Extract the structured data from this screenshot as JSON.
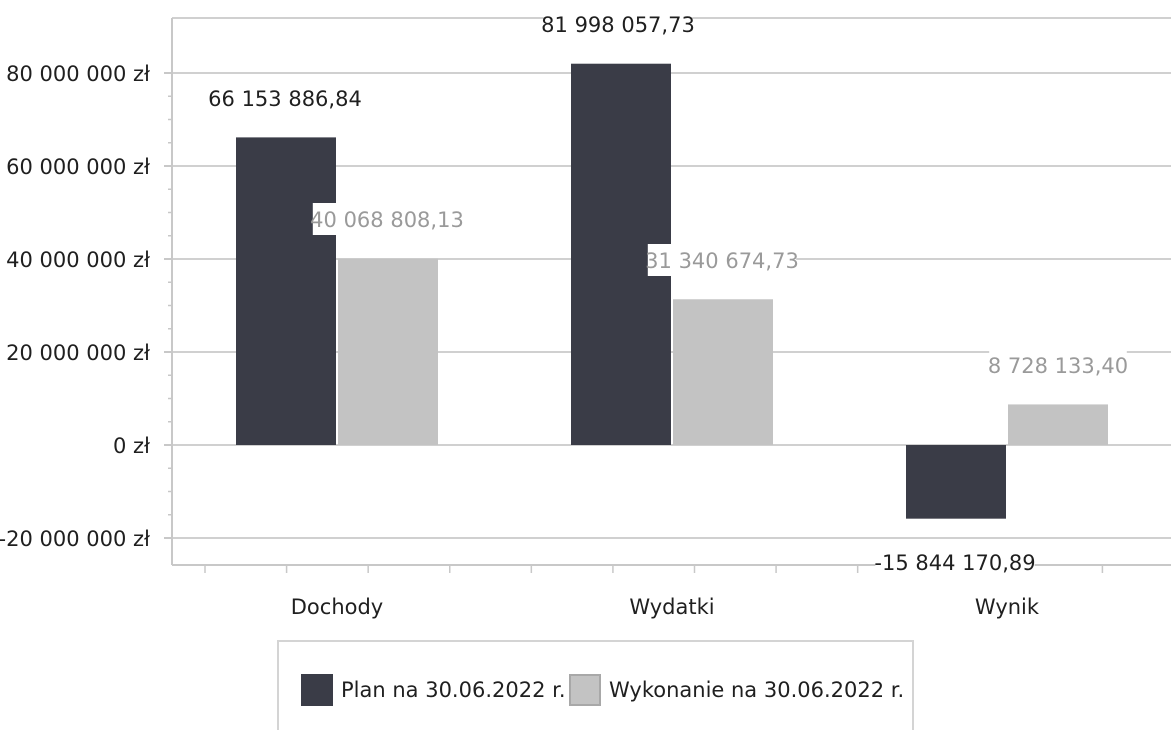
{
  "chart_data": {
    "type": "bar",
    "categories": [
      "Dochody",
      "Wydatki",
      "Wynik"
    ],
    "series": [
      {
        "name": "Plan na 30.06.2022 r.",
        "values": [
          66153886.84,
          81998057.73,
          -15844170.89
        ],
        "labels": [
          "66 153 886,84",
          "81 998 057,73",
          "-15 844 170,89"
        ],
        "color": "#3a3c47"
      },
      {
        "name": "Wykonanie na 30.06.2022 r.",
        "values": [
          40068808.13,
          31340674.73,
          8728133.4
        ],
        "labels": [
          "40 068 808,13",
          "31 340 674,73",
          "8 728 133,40"
        ],
        "color": "#c3c3c3"
      }
    ],
    "y_ticks": [
      80000000,
      60000000,
      40000000,
      20000000,
      0,
      -20000000
    ],
    "y_tick_labels": [
      "80 000 000 zł",
      "60 000 000 zł",
      "40 000 000 zł",
      "20 000 000 zł",
      "0 zł",
      "-20 000 000 zł"
    ],
    "ylim": [
      -25000000,
      92000000
    ],
    "grid": true,
    "legend_position": "bottom",
    "colors": {
      "label_dark": "#1f1f1f",
      "label_light": "#9a9a9a",
      "grid": "#d0d0d0",
      "axis": "#c8c8c8"
    }
  }
}
